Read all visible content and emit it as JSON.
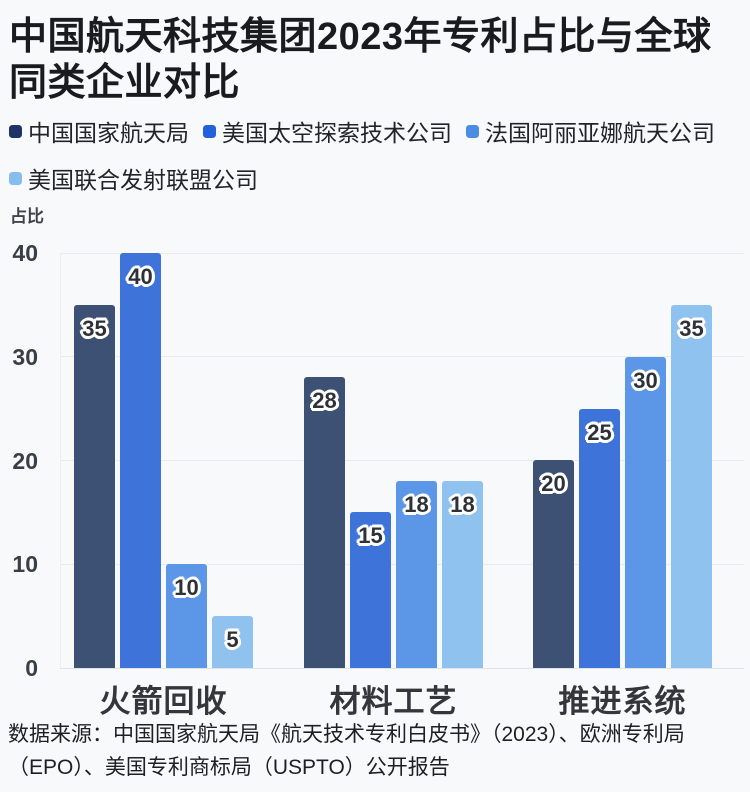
{
  "title": {
    "line1": "中国航天科技集团2023年专利占比与全球",
    "line2": "同类企业对比"
  },
  "chart_data": {
    "type": "bar",
    "title": "中国航天科技集团2023年专利占比与全球同类企业对比",
    "ylabel": "占比",
    "xlabel": "",
    "categories": [
      "火箭回收",
      "材料工艺",
      "推进系统"
    ],
    "series": [
      {
        "name": "中国国家航天局",
        "bar_color": "#3d5174",
        "legend_color": "#1e3468",
        "values": [
          35,
          28,
          20
        ]
      },
      {
        "name": "美国太空探索技术公司",
        "bar_color": "#3e74da",
        "legend_color": "#2360dc",
        "values": [
          40,
          15,
          25
        ]
      },
      {
        "name": "法国阿丽亚娜航天公司",
        "bar_color": "#5b97e6",
        "legend_color": "#4b8de2",
        "values": [
          10,
          18,
          30
        ]
      },
      {
        "name": "美国联合发射联盟公司",
        "bar_color": "#8fc2ee",
        "legend_color": "#84bdee",
        "values": [
          5,
          18,
          35
        ]
      }
    ],
    "ylim": [
      0,
      40
    ],
    "yticks": [
      0,
      10,
      20,
      30,
      40
    ],
    "grid": true,
    "legend_position": "top",
    "value_labels": true
  },
  "source": {
    "line1": "数据来源：中国国家航天局《航天技术专利白皮书》（2023）、欧洲专利局",
    "line2": "（EPO）、美国专利商标局（USPTO）公开报告"
  },
  "colors": {
    "background": "#f8f9fa",
    "title_text": "#191b1e",
    "grid": "#e9ebef",
    "value_label_text": "#2e3237",
    "value_label_outline": "#ffffff"
  }
}
